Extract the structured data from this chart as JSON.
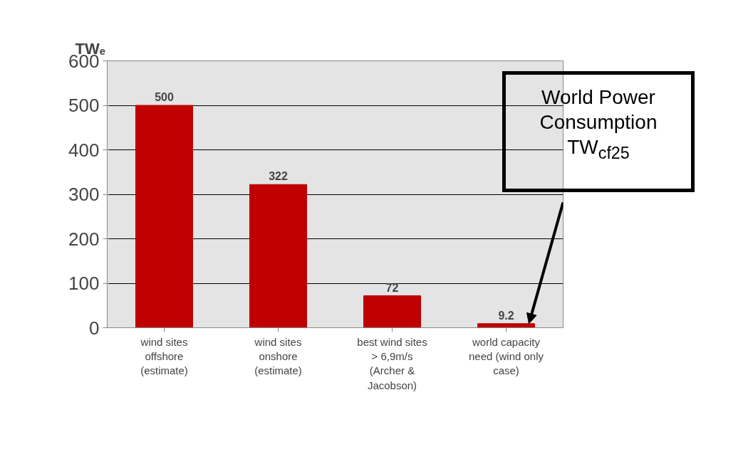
{
  "chart_data": {
    "type": "bar",
    "ylabel": "TWₑ",
    "categories": [
      "wind sites offshore (estimate)",
      "wind sites onshore (estimate)",
      "best wind sites > 6,9m/s (Archer & Jacobson)",
      "world capacity need (wind only case)"
    ],
    "values": [
      500,
      322,
      72,
      9.2
    ],
    "color": "#c00000",
    "ylim": [
      0,
      600
    ],
    "yticks": [
      0,
      100,
      200,
      300,
      400,
      500,
      600
    ],
    "grid": "y",
    "data_labels": true,
    "annotations": [
      "World Power Consumption TW$_{cf25}$"
    ]
  }
}
